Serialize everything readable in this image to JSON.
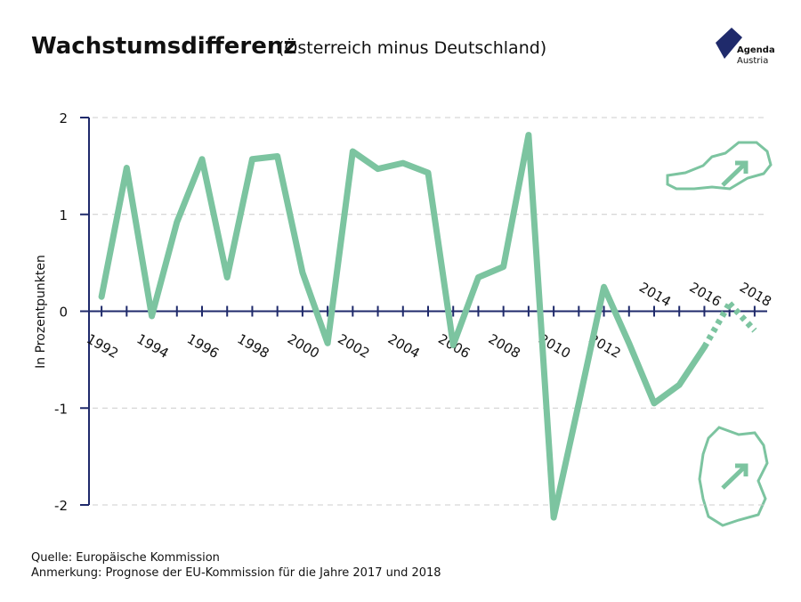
{
  "chart_data": {
    "type": "line",
    "title": "Wachstumsdifferenz",
    "subtitle": "(Österreich minus Deutschland)",
    "ylabel": "In Prozentpunkten",
    "source": "Quelle: Europäische Kommission",
    "note": "Anmerkung: Prognose der EU-Kommission für die Jahre 2017 und 2018",
    "logo": [
      "Agenda",
      "Austria"
    ],
    "x": [
      1992,
      1993,
      1994,
      1995,
      1996,
      1997,
      1998,
      1999,
      2000,
      2001,
      2002,
      2003,
      2004,
      2005,
      2006,
      2007,
      2008,
      2009,
      2010,
      2011,
      2012,
      2013,
      2014,
      2015,
      2016,
      2017,
      2018
    ],
    "series": [
      {
        "color": "#7cc4a0",
        "values": [
          0.15,
          1.48,
          -0.05,
          0.92,
          1.57,
          0.35,
          1.57,
          1.6,
          0.4,
          -0.33,
          1.65,
          1.47,
          1.53,
          1.43,
          -0.35,
          0.35,
          0.46,
          1.82,
          -2.13,
          -0.95,
          0.25,
          -0.33,
          -0.95,
          -0.76,
          -0.37,
          0.08,
          -0.2
        ]
      }
    ],
    "forecast_x": [
      2017,
      2018
    ],
    "xlim": [
      1991.5,
      2018.5
    ],
    "xticks": [
      1992,
      1994,
      1996,
      1998,
      2000,
      2002,
      2004,
      2006,
      2008,
      2010,
      2012,
      2014,
      2016,
      2018
    ],
    "ylim": [
      -2,
      2
    ],
    "yticks": [
      -2,
      -1,
      0,
      1,
      2
    ],
    "grid": true,
    "axis_color": "#1f2a6b"
  }
}
